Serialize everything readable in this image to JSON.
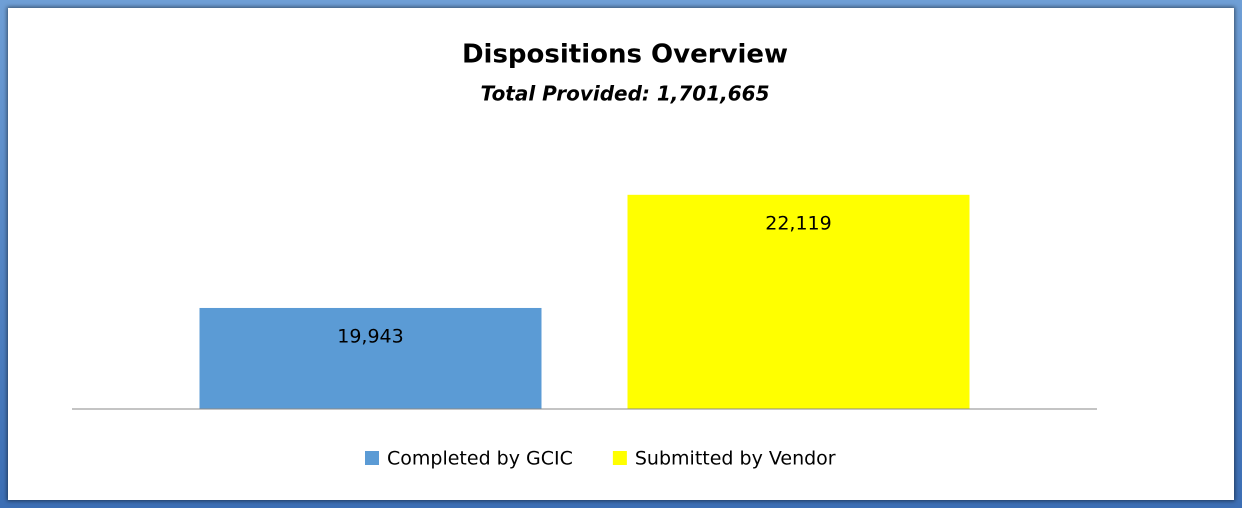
{
  "chart_data": {
    "type": "bar",
    "title": "Dispositions Overview",
    "subtitle": "Total Provided: 1,701,665",
    "series": [
      {
        "name": "Completed by GCIC",
        "color": "#5b9bd5",
        "values": [
          19943
        ],
        "value_labels": [
          "19,943"
        ]
      },
      {
        "name": "Submitted by Vendor",
        "color": "#ffff00",
        "values": [
          22119
        ],
        "value_labels": [
          "22,119"
        ]
      }
    ],
    "ylim": [
      18000,
      23000
    ],
    "legend": "bottom"
  }
}
